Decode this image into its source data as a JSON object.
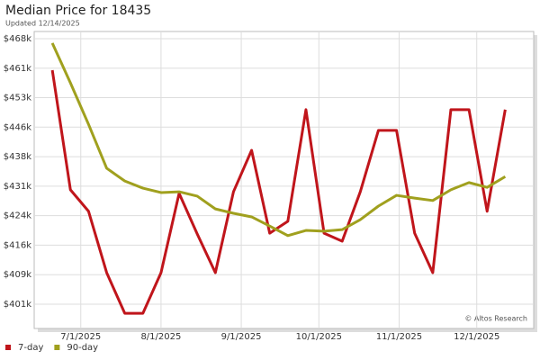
{
  "chart_data": {
    "type": "line",
    "title": "Median Price for 18435",
    "subtitle": "Updated 12/14/2025",
    "annotation": "© Altos Research",
    "x": [
      "2025-06-20",
      "2025-06-27",
      "2025-07-04",
      "2025-07-11",
      "2025-07-18",
      "2025-07-25",
      "2025-08-01",
      "2025-08-08",
      "2025-08-15",
      "2025-08-22",
      "2025-08-29",
      "2025-09-05",
      "2025-09-12",
      "2025-09-19",
      "2025-09-26",
      "2025-10-03",
      "2025-10-10",
      "2025-10-17",
      "2025-10-24",
      "2025-10-31",
      "2025-11-07",
      "2025-11-14",
      "2025-11-21",
      "2025-11-28",
      "2025-12-05",
      "2025-12-12"
    ],
    "series": [
      {
        "name": "7-day",
        "color": "#c0151b",
        "values": [
          460.0,
          430.0,
          424.6,
          409.2,
          399.0,
          399.0,
          409.2,
          429.1,
          418.9,
          409.2,
          429.5,
          439.9,
          419.1,
          422.1,
          450.1,
          419.1,
          417.1,
          429.5,
          444.9,
          444.9,
          419.1,
          409.2,
          450.1,
          450.1,
          424.6,
          450.1
        ]
      },
      {
        "name": "90-day",
        "color": "#a0a01e",
        "values": [
          466.8,
          456.8,
          446.4,
          435.4,
          432.2,
          430.4,
          429.3,
          429.5,
          428.4,
          425.2,
          424.1,
          423.2,
          420.9,
          418.5,
          419.8,
          419.6,
          420.0,
          422.5,
          425.9,
          428.6,
          427.9,
          427.3,
          430.0,
          431.8,
          430.6,
          433.3
        ]
      }
    ],
    "xlim": [
      "2025-06-13",
      "2025-12-23"
    ],
    "xticks": [
      {
        "value": "2025-07-01",
        "label": "7/1/2025"
      },
      {
        "value": "2025-08-01",
        "label": "8/1/2025"
      },
      {
        "value": "2025-09-01",
        "label": "9/1/2025"
      },
      {
        "value": "2025-10-01",
        "label": "10/1/2025"
      },
      {
        "value": "2025-11-01",
        "label": "11/1/2025"
      },
      {
        "value": "2025-12-01",
        "label": "12/1/2025"
      }
    ],
    "ylim": [
      395.2,
      469.7
    ],
    "yticks": [
      {
        "value": 401.3,
        "label": "$401k"
      },
      {
        "value": 408.7,
        "label": "$409k"
      },
      {
        "value": 416.1,
        "label": "$416k"
      },
      {
        "value": 423.5,
        "label": "$424k"
      },
      {
        "value": 430.9,
        "label": "$431k"
      },
      {
        "value": 438.3,
        "label": "$438k"
      },
      {
        "value": 445.7,
        "label": "$446k"
      },
      {
        "value": 453.1,
        "label": "$453k"
      },
      {
        "value": 460.5,
        "label": "$461k"
      },
      {
        "value": 467.9,
        "label": "$468k"
      }
    ],
    "grid": true,
    "legend": "bottom-left"
  }
}
